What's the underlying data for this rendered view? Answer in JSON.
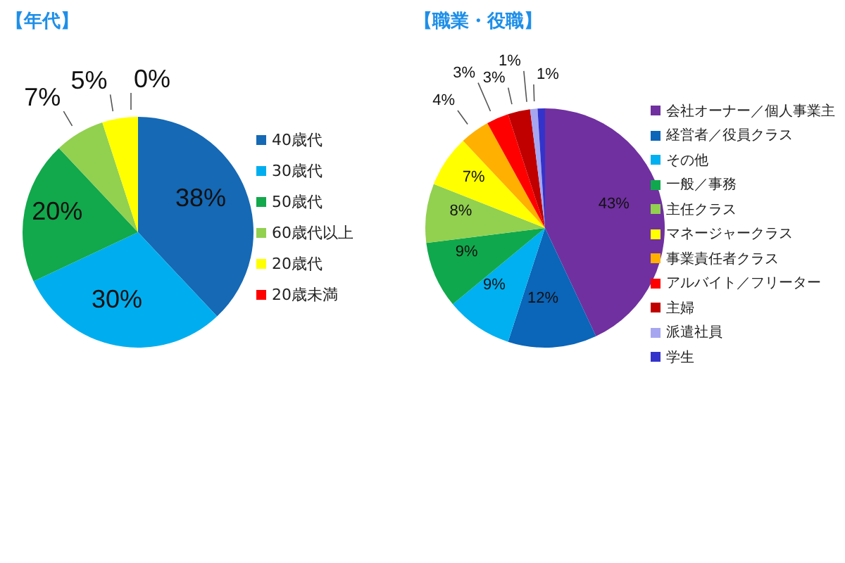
{
  "chart_data": [
    {
      "type": "pie",
      "title": "【年代】",
      "categories": [
        "40歳代",
        "30歳代",
        "50歳代",
        "60歳代以上",
        "20歳代",
        "20歳未満"
      ],
      "values": [
        38,
        30,
        20,
        7,
        5,
        0
      ],
      "value_labels": [
        "38%",
        "30%",
        "20%",
        "7%",
        "5%",
        "0%"
      ],
      "colors": [
        "#1569b5",
        "#00aeef",
        "#12a84c",
        "#92d050",
        "#ffff00",
        "#ff0000"
      ],
      "legend": "right"
    },
    {
      "type": "pie",
      "title": "【職業・役職】",
      "categories": [
        "会社オーナー／個人事業主",
        "経営者／役員クラス",
        "その他",
        "一般／事務",
        "主任クラス",
        "マネージャークラス",
        "事業責任者クラス",
        "アルバイト／フリーター",
        "主婦",
        "派遣社員",
        "学生"
      ],
      "values": [
        43,
        12,
        9,
        9,
        8,
        7,
        4,
        3,
        3,
        1,
        1
      ],
      "value_labels": [
        "43%",
        "12%",
        "9%",
        "9%",
        "8%",
        "7%",
        "4%",
        "3%",
        "3%",
        "1%",
        "1%"
      ],
      "colors": [
        "#7030a0",
        "#0b65b8",
        "#00b0f0",
        "#10a84c",
        "#92d050",
        "#ffff00",
        "#ffb000",
        "#ff0000",
        "#c00000",
        "#a6a6f0",
        "#3333cc"
      ],
      "legend": "right"
    }
  ]
}
